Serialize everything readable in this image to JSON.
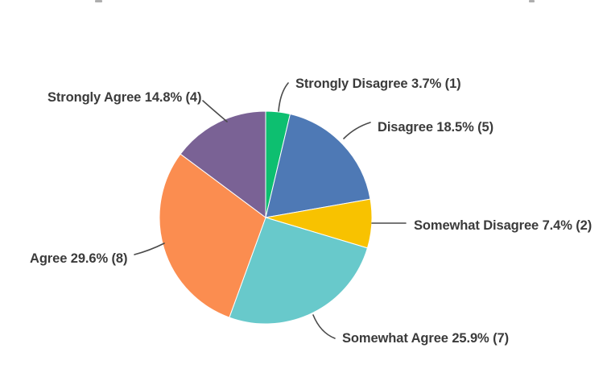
{
  "chart_data": {
    "type": "pie",
    "label_style": "outside-with-leader-lines",
    "start_angle_deg": 0,
    "direction": "clockwise",
    "label_color": "#3b3b3b",
    "leader_line_color": "#4a4a4a",
    "slice_border_color": "#ffffff",
    "total_shown_in_counts": 27,
    "slices": [
      {
        "label": "Strongly Disagree",
        "percent": 3.7,
        "count": 1,
        "display": "Strongly Disagree 3.7% (1)",
        "color": "#0dbf70"
      },
      {
        "label": "Disagree",
        "percent": 18.5,
        "count": 5,
        "display": "Disagree 18.5% (5)",
        "color": "#4e79b5"
      },
      {
        "label": "Somewhat Disagree",
        "percent": 7.4,
        "count": 2,
        "display": "Somewhat Disagree 7.4% (2)",
        "color": "#f8c200"
      },
      {
        "label": "Somewhat Agree",
        "percent": 25.9,
        "count": 7,
        "display": "Somewhat Agree 25.9% (7)",
        "color": "#68c9cb"
      },
      {
        "label": "Agree",
        "percent": 29.6,
        "count": 8,
        "display": "Agree 29.6% (8)",
        "color": "#fb8d50"
      },
      {
        "label": "Strongly Agree",
        "percent": 14.8,
        "count": 4,
        "display": "Strongly Agree 14.8% (4)",
        "color": "#7a6295"
      }
    ]
  }
}
